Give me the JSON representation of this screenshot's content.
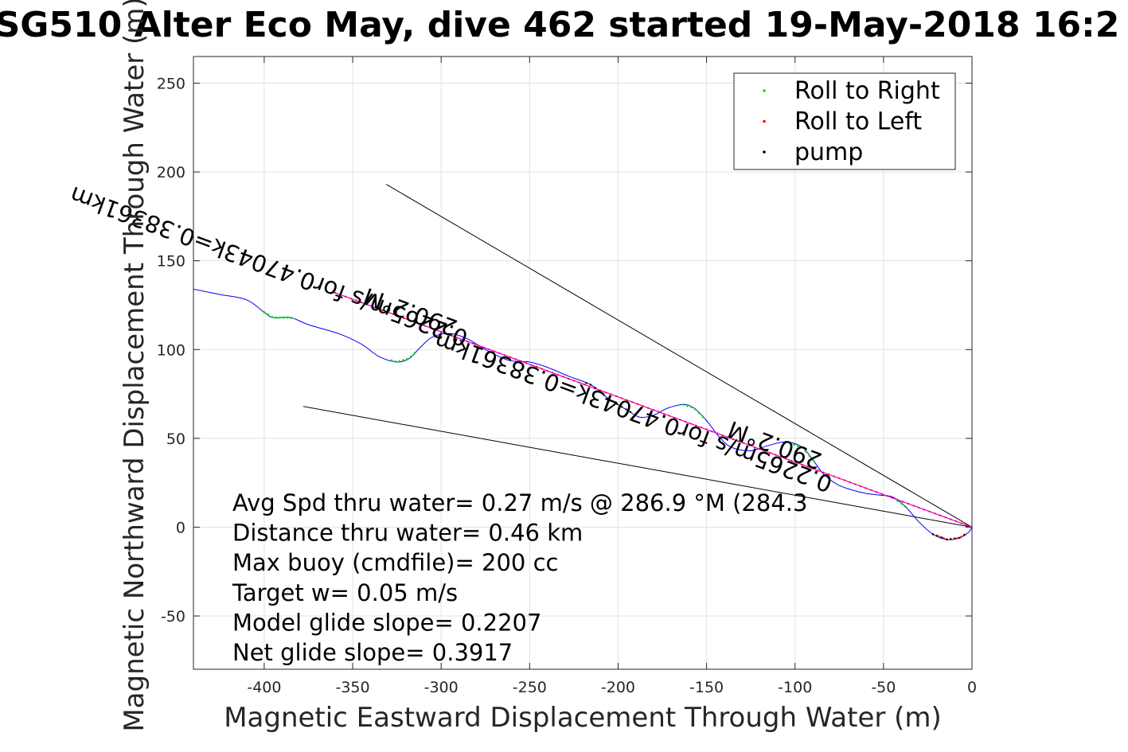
{
  "chart_data": {
    "type": "line",
    "title": "SG510 Alter Eco May, dive 462 started 19-May-2018 16:2",
    "xlabel": "Magnetic Eastward Displacement Through Water (m)",
    "ylabel": "Magnetic Northward Displacement Through Water (m)",
    "xlim": [
      -440,
      0
    ],
    "ylim": [
      -80,
      265
    ],
    "xticks": [
      -400,
      -350,
      -300,
      -250,
      -200,
      -150,
      -100,
      -50,
      0
    ],
    "yticks": [
      -50,
      0,
      50,
      100,
      150,
      200,
      250
    ],
    "xtick_labels": [
      "-400",
      "-350",
      "-300",
      "-250",
      "-200",
      "-150",
      "-100",
      "-50",
      "0"
    ],
    "ytick_labels": [
      "-50",
      "0",
      "50",
      "100",
      "150",
      "200",
      "250"
    ],
    "grid": true,
    "legend_position": "top-right",
    "legend": [
      {
        "label": "Roll to Right",
        "color": "#00dd00"
      },
      {
        "label": "Roll to Left",
        "color": "#ff0000"
      },
      {
        "label": "pump",
        "color": "#000000"
      }
    ],
    "track": {
      "color": "#0000ff",
      "points": [
        [
          -440,
          134
        ],
        [
          -425,
          131
        ],
        [
          -410,
          128
        ],
        [
          -400,
          121
        ],
        [
          -395,
          118
        ],
        [
          -385,
          118
        ],
        [
          -375,
          114
        ],
        [
          -358,
          109
        ],
        [
          -345,
          103
        ],
        [
          -335,
          96
        ],
        [
          -325,
          93
        ],
        [
          -318,
          95
        ],
        [
          -312,
          101
        ],
        [
          -305,
          107
        ],
        [
          -295,
          109
        ],
        [
          -285,
          106
        ],
        [
          -275,
          100
        ],
        [
          -262,
          94
        ],
        [
          -250,
          93
        ],
        [
          -240,
          90
        ],
        [
          -228,
          85
        ],
        [
          -215,
          80
        ],
        [
          -205,
          72
        ],
        [
          -195,
          66
        ],
        [
          -188,
          62
        ],
        [
          -180,
          63
        ],
        [
          -172,
          67
        ],
        [
          -163,
          69
        ],
        [
          -157,
          67
        ],
        [
          -150,
          60
        ],
        [
          -143,
          51
        ],
        [
          -136,
          45
        ],
        [
          -125,
          43
        ],
        [
          -115,
          46
        ],
        [
          -105,
          48
        ],
        [
          -96,
          45
        ],
        [
          -90,
          38
        ],
        [
          -84,
          30
        ],
        [
          -76,
          24
        ],
        [
          -68,
          21
        ],
        [
          -60,
          19
        ],
        [
          -52,
          18
        ],
        [
          -45,
          17
        ],
        [
          -38,
          12
        ],
        [
          -30,
          3
        ],
        [
          -22,
          -4
        ],
        [
          -14,
          -7
        ],
        [
          -7,
          -6
        ],
        [
          -2,
          -3
        ],
        [
          0,
          0
        ]
      ]
    },
    "roll_right_segments": [
      {
        "x_start": -400,
        "x_end": -384
      },
      {
        "x_start": -328,
        "x_end": -313
      },
      {
        "x_start": -163,
        "x_end": -150
      },
      {
        "x_start": -105,
        "x_end": -88
      },
      {
        "x_start": -42,
        "x_end": -36
      }
    ],
    "roll_left_segments": [
      {
        "x_start": -360,
        "x_end": -1
      },
      {
        "x_start": -22,
        "x_end": -3
      }
    ],
    "pump_segments": [
      {
        "x_start": -218,
        "x_end": -192
      },
      {
        "x_start": -22,
        "x_end": -3
      }
    ],
    "net_line": {
      "color": "#ff00ff",
      "from": [
        -360,
        132
      ],
      "to": [
        0,
        0
      ]
    },
    "heading_lines": [
      {
        "from": [
          -331,
          193
        ],
        "to": [
          0,
          0
        ]
      },
      {
        "from": [
          -378,
          68
        ],
        "to": [
          0,
          0
        ]
      },
      {
        "from": [
          -360,
          132
        ],
        "to": [
          0,
          0
        ]
      }
    ],
    "annotations": [
      {
        "text": "290.2°M",
        "x": -290,
        "y": 116,
        "rotation_deg": 200.2
      },
      {
        "text": "0.2265m/s for0.47043k=0.38361km",
        "x": -284,
        "y": 110,
        "rotation_deg": 200.2
      },
      {
        "text": "290.2°M",
        "x": -84,
        "y": 41,
        "rotation_deg": 200.2
      },
      {
        "text": "0.2265m/s for0.47043k=0.38361km",
        "x": -78,
        "y": 28,
        "rotation_deg": 200.2
      }
    ],
    "stats": [
      "Avg Spd thru water=  0.27 m/s @ 286.9 °M (284.3",
      "Distance thru water=  0.46 km",
      "Max buoy (cmdfile)= 200 cc",
      "Target w= 0.05 m/s",
      "Model glide slope= 0.2207",
      "Net glide slope= 0.3917"
    ]
  }
}
